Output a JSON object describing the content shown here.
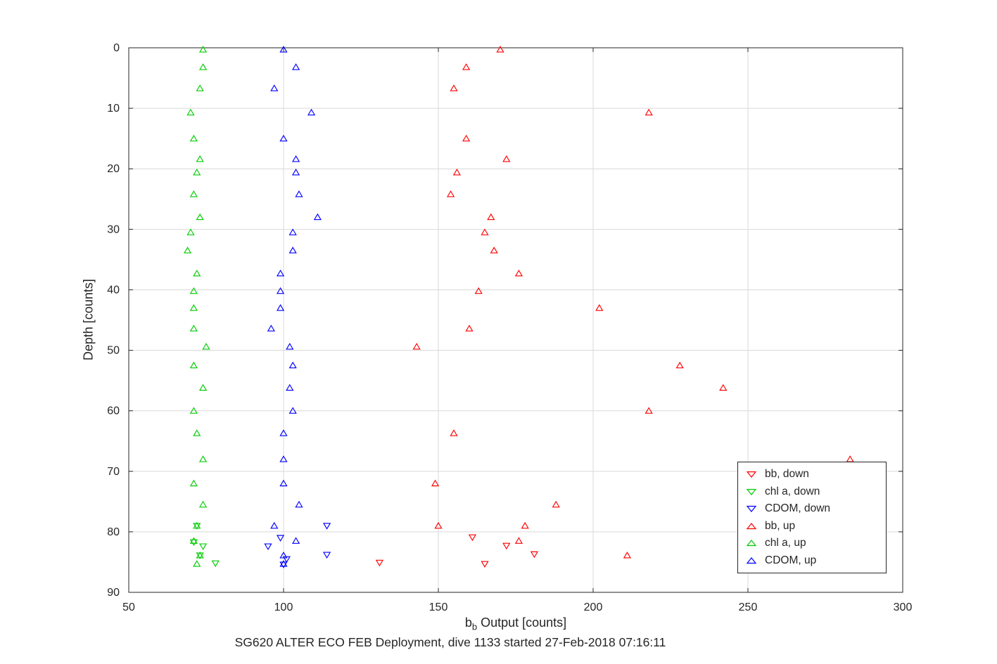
{
  "figure": {
    "background": "#ffffff"
  },
  "chart_data": {
    "type": "scatter",
    "title": "SG620 ALTER ECO FEB Deployment, dive 1133 started 27-Feb-2018 07:16:11",
    "xlabel": {
      "base": "b",
      "sub": "b",
      "rest": " Output [counts]"
    },
    "ylabel": "Depth [counts]",
    "xlim": [
      50,
      300
    ],
    "ylim": [
      0,
      90
    ],
    "y_axis_reversed": true,
    "grid": true,
    "x_ticks": [
      50,
      100,
      150,
      200,
      250,
      300
    ],
    "y_ticks": [
      0,
      10,
      20,
      30,
      40,
      50,
      60,
      70,
      80,
      90
    ],
    "legend_position": "inside-lower-right",
    "style": {
      "grid_color": "#d9d9d9",
      "axis_color": "#262626",
      "bb_color": "#ff0000",
      "chl_color": "#00cc00",
      "cdom_color": "#0000ff"
    },
    "legend": [
      {
        "label": "bb, down",
        "color": "#ff0000",
        "marker": "triangle-down"
      },
      {
        "label": "chl a, down",
        "color": "#00cc00",
        "marker": "triangle-down"
      },
      {
        "label": "CDOM, down",
        "color": "#0000ff",
        "marker": "triangle-down"
      },
      {
        "label": "bb, up",
        "color": "#ff0000",
        "marker": "triangle-up"
      },
      {
        "label": "chl a, up",
        "color": "#00cc00",
        "marker": "triangle-up"
      },
      {
        "label": "CDOM, up",
        "color": "#0000ff",
        "marker": "triangle-up"
      }
    ],
    "series": [
      {
        "id": "bb-down",
        "label": "bb, down",
        "color": "#ff0000",
        "marker": "triangle-down",
        "points": [
          [
            161,
            80.9
          ],
          [
            172,
            82.3
          ],
          [
            181,
            83.7
          ],
          [
            165,
            85.3
          ],
          [
            131,
            85.1
          ]
        ]
      },
      {
        "id": "chl-down",
        "label": "chl a, down",
        "color": "#00cc00",
        "marker": "triangle-down",
        "points": [
          [
            72,
            79.0
          ],
          [
            71,
            81.7
          ],
          [
            74,
            82.4
          ],
          [
            73,
            83.9
          ],
          [
            78,
            85.2
          ]
        ]
      },
      {
        "id": "cdom-down",
        "label": "CDOM, down",
        "color": "#0000ff",
        "marker": "triangle-down",
        "points": [
          [
            114,
            79.0
          ],
          [
            99,
            81.0
          ],
          [
            95,
            82.4
          ],
          [
            114,
            83.8
          ],
          [
            101,
            84.5
          ],
          [
            100,
            85.4
          ]
        ]
      },
      {
        "id": "bb-up",
        "label": "bb, up",
        "color": "#ff0000",
        "marker": "triangle-up",
        "points": [
          [
            170,
            0.3
          ],
          [
            159,
            3.2
          ],
          [
            155,
            6.7
          ],
          [
            218,
            10.7
          ],
          [
            159,
            15.0
          ],
          [
            172,
            18.4
          ],
          [
            156,
            20.6
          ],
          [
            154,
            24.2
          ],
          [
            167,
            28.0
          ],
          [
            165,
            30.5
          ],
          [
            168,
            33.5
          ],
          [
            176,
            37.3
          ],
          [
            163,
            40.2
          ],
          [
            202,
            43.0
          ],
          [
            160,
            46.4
          ],
          [
            143,
            49.4
          ],
          [
            228,
            52.5
          ],
          [
            242,
            56.2
          ],
          [
            218,
            60.0
          ],
          [
            155,
            63.7
          ],
          [
            283,
            68.0
          ],
          [
            149,
            72.0
          ],
          [
            188,
            75.5
          ],
          [
            150,
            79.0
          ],
          [
            178,
            79.0
          ],
          [
            176,
            81.5
          ],
          [
            211,
            83.9
          ]
        ]
      },
      {
        "id": "chl-up",
        "label": "chl a, up",
        "color": "#00cc00",
        "marker": "triangle-up",
        "points": [
          [
            74,
            0.3
          ],
          [
            74,
            3.2
          ],
          [
            73,
            6.7
          ],
          [
            70,
            10.7
          ],
          [
            71,
            15.0
          ],
          [
            73,
            18.4
          ],
          [
            72,
            20.6
          ],
          [
            71,
            24.2
          ],
          [
            73,
            28.0
          ],
          [
            70,
            30.5
          ],
          [
            69,
            33.5
          ],
          [
            72,
            37.3
          ],
          [
            71,
            40.2
          ],
          [
            71,
            43.0
          ],
          [
            71,
            46.4
          ],
          [
            75,
            49.4
          ],
          [
            71,
            52.5
          ],
          [
            74,
            56.2
          ],
          [
            71,
            60.0
          ],
          [
            72,
            63.7
          ],
          [
            74,
            68.0
          ],
          [
            71,
            72.0
          ],
          [
            74,
            75.5
          ],
          [
            72,
            79.0
          ],
          [
            71,
            81.5
          ],
          [
            73,
            83.9
          ],
          [
            72,
            85.3
          ]
        ]
      },
      {
        "id": "cdom-up",
        "label": "CDOM, up",
        "color": "#0000ff",
        "marker": "triangle-up",
        "points": [
          [
            100,
            0.3
          ],
          [
            104,
            3.2
          ],
          [
            97,
            6.7
          ],
          [
            109,
            10.7
          ],
          [
            100,
            15.0
          ],
          [
            104,
            18.4
          ],
          [
            104,
            20.6
          ],
          [
            105,
            24.2
          ],
          [
            111,
            28.0
          ],
          [
            103,
            30.5
          ],
          [
            103,
            33.5
          ],
          [
            99,
            37.3
          ],
          [
            99,
            40.2
          ],
          [
            99,
            43.0
          ],
          [
            96,
            46.4
          ],
          [
            102,
            49.4
          ],
          [
            103,
            52.5
          ],
          [
            102,
            56.2
          ],
          [
            103,
            60.0
          ],
          [
            100,
            63.7
          ],
          [
            100,
            68.0
          ],
          [
            100,
            72.0
          ],
          [
            105,
            75.5
          ],
          [
            97,
            79.0
          ],
          [
            104,
            81.5
          ],
          [
            100,
            83.9
          ],
          [
            100,
            85.3
          ]
        ]
      }
    ]
  }
}
